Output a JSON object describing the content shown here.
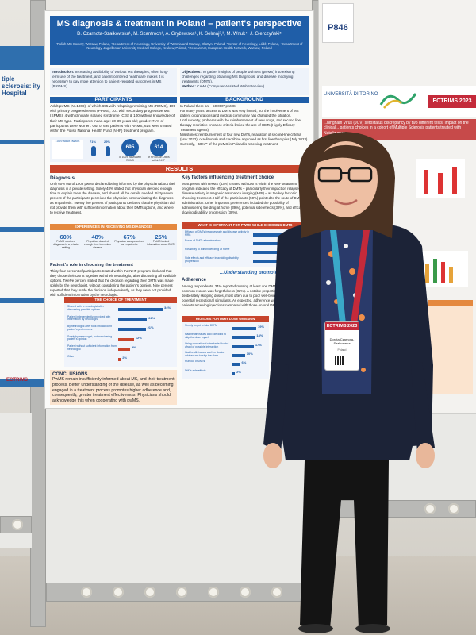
{
  "scene": {
    "description_colors": {
      "poster_blue": "#1f5ea8",
      "result_red": "#c7452c",
      "ectrims_red": "#c42a3a"
    }
  },
  "left_poster": {
    "title": "tiple sclerosis: ity Hospital",
    "footer": "ECTRIMS"
  },
  "poster": {
    "title": "MS diagnosis & treatment in Poland – patient's perspective",
    "authors": "D. Czarnota-Szałkowska¹, M. Szantroch¹, A. Gryżewska¹, K. Selmaj²,³, M. Wnuk⁴, J. Gierczyński⁵",
    "affiliations": "¹Polish MS Society, Warsaw, Poland, ²Department of Neurology, University of Warmia and Mazury, Olsztyn, Poland, ³Center of Neurology, Łódź, Poland, ⁴Department of Neurology, Jagiellonian University Medical College, Krakow, Poland, ⁵Researcher, European Health Network, Warsaw, Poland",
    "intro_label": "Introduction:",
    "intro_text": "Increasing availability of various MS therapies, often long-term use of the treatment, and patient-centered healthcare makes it is necessary to pay more attention to patient-reported outcomes in MS (PROMS).",
    "objectives_label": "Objectives:",
    "objectives_text": "To gather insights of people with MS (pwMS) into existing challenges regarding obtaining MS Diagnosis, and disease modifying treatments (DMTs).",
    "method_label": "Method:",
    "method_text": "CAWI (Computer Assisted Web Interview).",
    "participants_header": "PARTICIPANTS",
    "participants_text": "Adult pwMS (N=1009), of which 695 with relapsing-remitting MS (RRMS), 109 with primary progressive MS (PPMS), 101 with secondary progressive MS (SPMS), 4 with clinically isolated syndrome (CIS) & 100 without knowledge of their MS type. Participants mean age: 30-39 years old; gender: 71% of participants were women. Out of 695 patients with RRMS, 614 were treated within the Polish National Health Fund (NHF) treatment program.",
    "stats": {
      "total_label": "1009 adult pwMS",
      "female_pct": "71%",
      "male_pct": "29%",
      "rrms_value": "695",
      "rrms_caption": "of 1009 pwMS with RRMS",
      "nhf_value": "614",
      "nhf_caption": "of RRMS on DMTs within NHF"
    },
    "background_header": "BACKGROUND",
    "background_items": [
      "In Poland there are ~50,000* pwMS.",
      "For many years, access to DMTs was very limited, but the involvement of MS patient organizations and medical community has changed the situation.",
      "Until recently, problems with the reimbursement of new drugs, and second line therapy restrictive entrance criteria limited the use of HETs (Highly Efficacy Treatment Agents).",
      "Milestones: reimbursement of four new DMTs, relaxation of second-line criteria (Nov 2022), ocrelizumab and cladribine approved as first line therapies (July 2023).",
      "Currently, ~50%** of the pwMS in Poland is receiving treatment."
    ],
    "results_header": "RESULTS",
    "diagnosis_title": "Diagnosis",
    "diagnosis_text": "Only 60% out of 1009 pwMS declared being informed by the physician about their diagnosis in a private setting. Solely 48% stated that physician devoted enough time to explain them the disease, and shared all the details needed. Sixty seven percent of the participants perceived the physician communicating the diagnosis as empathetic. Twenty five percent of participants declared that the physician did not provide them with sufficient information about their DMTs options, and where to receive treatment.",
    "experiences_header": "EXPERIENCES IN RECEIVING MS DIAGNOSIS",
    "experiences": [
      {
        "value": "60%",
        "label": "PwMS received diagnosis in a private setting"
      },
      {
        "value": "48%",
        "label": "Physician devoted enough time to explain disease"
      },
      {
        "value": "67%",
        "label": "Physician was perceived as empathetic"
      },
      {
        "value": "25%",
        "label": "PwMS lacked information about DMTs"
      }
    ],
    "patient_role_title": "Patient's role in choosing the treatment",
    "patient_role_text": "Thirty-four percent of participants treated within the NHF program declared that they chose their DMTs together with their neurologist, after discussing all available options. Twelve percent stated that the decision regarding their DMTs was made solely by the neurologist, without considering the patient's opinion. Nine percent reported that they made the decision independently, as they were not provided with sufficient information by the neurologist.",
    "choice_header": "THE CHOICE OF TREATMENT",
    "choice_rows": [
      {
        "label": "Shared with a neurologist after discussing possible options",
        "value": 34,
        "display": "34%"
      },
      {
        "label": "Patient independently, provided with information by neurologist",
        "value": 22,
        "display": "22%"
      },
      {
        "label": "By neurologist after took into account patient's preferences",
        "value": 21,
        "display": "21%"
      },
      {
        "label": "Solely by neurologist, not considering patient's opinion",
        "value": 12,
        "display": "12%"
      },
      {
        "label": "Patient without sufficient information from neurologist",
        "value": 9,
        "display": "9%"
      },
      {
        "label": "Other",
        "value": 2,
        "display": "2%"
      }
    ],
    "conclusions_title": "CONCLUSIONS",
    "conclusions_text": "PwMS remain insufficiently informed about MS, and their treatment process. Better understanding of the disease, as well as becoming engaged in a treatment process promotes higher adherence and, consequently, greater treatment effectiveness. Physicians should acknowledge this when cooperating with pwMS.",
    "factors_title": "Key factors influencing treatment choice",
    "factors_text": "Most pwMS with RRMS (53%) treated with DMTs within the NHF treatment program indicated the efficacy of DMTs – particularly their impact on relapses and disease activity in magnetic resonance imaging (MRI) – as the key factor in choosing treatment. Half of the participants (50%) pointed to the route of DMT administration. Other important preferences included the possibility of administering the drug at home (39%), potential side effects (38%), and efficacy in slowing disability progression (38%).",
    "important_header": "WHAT IS IMPORTANT FOR PWMS WHILE CHOOSING DMTS",
    "important_rows": [
      {
        "label": "Efficacy of DMTs (relapses rate and disease activity in MRI)",
        "value": 53,
        "display": "53%"
      },
      {
        "label": "Route of DMTs administration",
        "value": 50,
        "display": "50%"
      },
      {
        "label": "Possibility to administer drug at home",
        "value": 39,
        "display": "39%"
      },
      {
        "label": "Side effects and efficacy in avoiding disability progression",
        "value": 38,
        "display": "38%"
      }
    ],
    "understanding_banner": "...Understanding promotes adherence",
    "adherence_title": "Adherence",
    "adherence_text": "Among respondents, 34% reported missing at least one DMTs dose. The most common reason was forgetfulness (82%). A notable proportion admitted deliberately skipping doses, most often due to poor well-being or concerns about potential recreational stimulants. As expected, adherence was higher among patients receiving injections compared with those on oral DMTs (84% vs 45%).",
    "reasons_header": "REASONS FOR DMTs DOSE OMISSION",
    "reasons_rows": [
      {
        "label": "Simply forgot to take DMTs",
        "value": 19,
        "display": "19%"
      },
      {
        "label": "Had health issues and I decided to skip the dose myself",
        "value": 18,
        "display": "18%"
      },
      {
        "label": "Using recreational stimulants/alcohol afraid of possible interaction",
        "value": 17,
        "display": "17%"
      },
      {
        "label": "Had health issues and the doctor advised me to skip the dose",
        "value": 10,
        "display": "10%"
      },
      {
        "label": "Run out of DMTs",
        "value": 6,
        "display": "6%"
      },
      {
        "label": "DMTs side effects",
        "value": 2,
        "display": "2%"
      }
    ]
  },
  "right_poster": {
    "code": "P846",
    "university": "UNIVERSITÀ DI TORINO",
    "ectrims": "ECTRIMS 2023",
    "band_text": "...ningham Virus (JCV) serostatus discrepancy by two different tests: impact on the clinical... patients choices in a cohort of Multiple Sclerosis patients treated with Natalizumab"
  },
  "badge": {
    "event": "ECTRIMS 2023",
    "name": "Dorota Czarnota-Szałkowska",
    "country": "Poland"
  }
}
